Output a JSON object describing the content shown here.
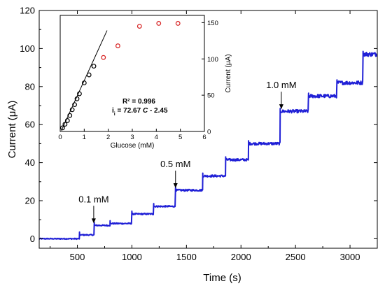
{
  "chart_data": [
    {
      "type": "line",
      "xlabel": "Time (s)",
      "ylabel": "Current (μA)",
      "xlim": [
        150,
        3250
      ],
      "ylim": [
        -5,
        120
      ],
      "xticks": [
        500,
        1000,
        1500,
        2000,
        2500,
        3000
      ],
      "yticks": [
        0,
        20,
        40,
        60,
        80,
        100,
        120
      ],
      "series": [
        {
          "color": "#1f1fd6",
          "steps": [
            {
              "t": 150,
              "y": 0
            },
            {
              "t": 520,
              "y": 2
            },
            {
              "t": 655,
              "y": 7
            },
            {
              "t": 800,
              "y": 8
            },
            {
              "t": 1000,
              "y": 13
            },
            {
              "t": 1200,
              "y": 17
            },
            {
              "t": 1400,
              "y": 25.5
            },
            {
              "t": 1650,
              "y": 33
            },
            {
              "t": 1860,
              "y": 41.5
            },
            {
              "t": 2070,
              "y": 50
            },
            {
              "t": 2360,
              "y": 67
            },
            {
              "t": 2620,
              "y": 75
            },
            {
              "t": 2880,
              "y": 82
            },
            {
              "t": 3120,
              "y": 97
            }
          ],
          "end_t": 3250
        }
      ],
      "annotations": [
        {
          "text": "0.1 mM",
          "x": 650,
          "y": 7
        },
        {
          "text": "0.5 mM",
          "x": 1400,
          "y": 25.5
        },
        {
          "text": "1.0 mM",
          "x": 2370,
          "y": 67
        }
      ]
    },
    {
      "type": "scatter",
      "xlabel": "Glucose (mM)",
      "ylabel": "Current (μA)",
      "xlim": [
        0,
        6
      ],
      "ylim": [
        0,
        160
      ],
      "xticks": [
        0,
        1,
        2,
        3,
        4,
        5,
        6
      ],
      "yticks": [
        0,
        50,
        100,
        150
      ],
      "series": [
        {
          "marker_color": "#000000",
          "x": [
            0.1,
            0.2,
            0.3,
            0.4,
            0.5,
            0.6,
            0.7,
            0.8,
            1.0,
            1.2,
            1.4
          ],
          "y": [
            5,
            10,
            15,
            22,
            30,
            37,
            45,
            52,
            67,
            78,
            90
          ]
        },
        {
          "marker_color": "#d62020",
          "x": [
            1.8,
            2.4,
            3.3,
            4.1,
            4.9
          ],
          "y": [
            102,
            118,
            145,
            149,
            149
          ]
        }
      ],
      "fit": {
        "slope": 72.67,
        "intercept": -2.45,
        "x_range": [
          0.05,
          1.95
        ],
        "color": "#000000"
      },
      "annotation": {
        "r2": "R² = 0.996",
        "eq_prefix": "i",
        "eq_sub": "i",
        "eq_body": " = 72.67 ",
        "eq_var": "C",
        "eq_tail": " - 2.45"
      }
    }
  ]
}
